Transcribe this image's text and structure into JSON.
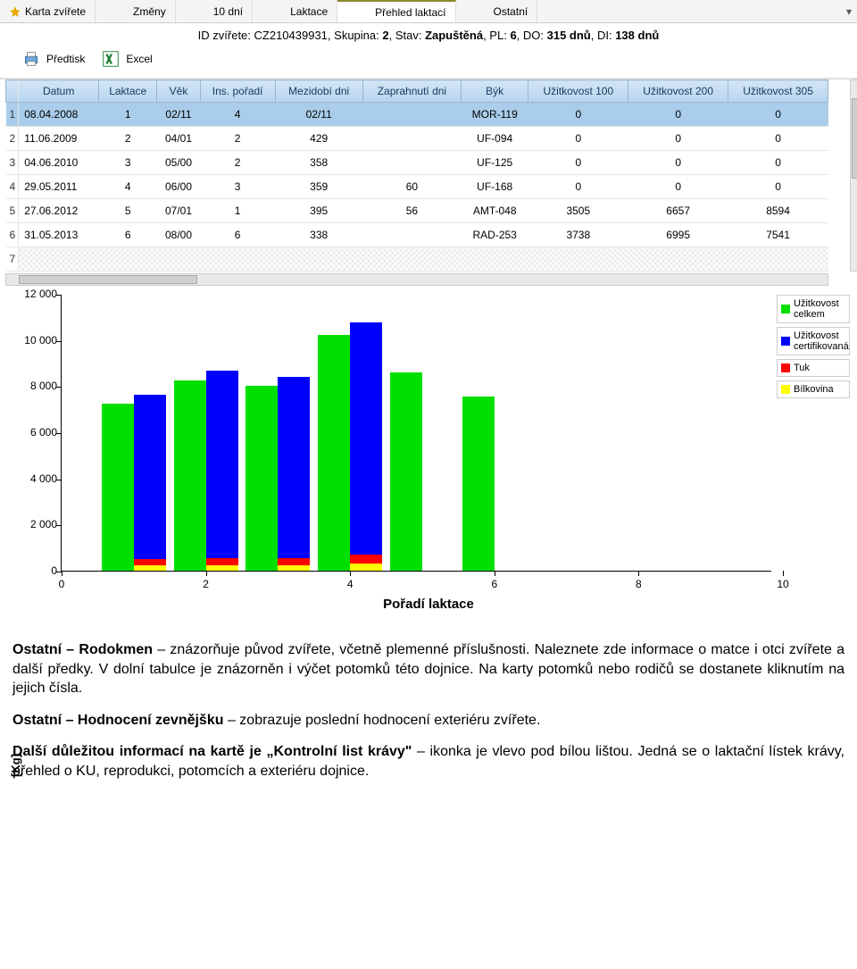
{
  "tabs": [
    {
      "label": "Karta zvířete",
      "active": false,
      "icon": "star"
    },
    {
      "label": "Změny",
      "active": false,
      "icon": "doc"
    },
    {
      "label": "10 dní",
      "active": false,
      "icon": "doc"
    },
    {
      "label": "Laktace",
      "active": false,
      "icon": "doc"
    },
    {
      "label": "Přehled laktací",
      "active": true,
      "icon": "doc"
    },
    {
      "label": "Ostatní",
      "active": false,
      "icon": "doc"
    }
  ],
  "info": {
    "prefix": "ID zvířete: ",
    "id": "CZ210439931",
    "group_lbl": ", Skupina: ",
    "group": "2",
    "state_lbl": ", Stav: ",
    "state": "Zapuštěná",
    "pl_lbl": ", PL: ",
    "pl": "6",
    "do_lbl": ", DO: ",
    "do": "315 dnů",
    "di_lbl": ", DI: ",
    "di": "138 dnů"
  },
  "toolbar": {
    "print": "Předtisk",
    "excel": "Excel"
  },
  "table": {
    "columns": [
      "Datum",
      "Laktace",
      "Věk",
      "Ins. pořadí",
      "Mezidobí dni",
      "Zaprahnutí dni",
      "Býk",
      "Užitkovost 100",
      "Užitkovost 200",
      "Užitkovost 305"
    ],
    "rows": [
      {
        "n": "1",
        "sel": true,
        "c": [
          "08.04.2008",
          "1",
          "02/11",
          "4",
          "02/11",
          "",
          "MOR-119",
          "0",
          "0",
          "0"
        ]
      },
      {
        "n": "2",
        "sel": false,
        "c": [
          "11.06.2009",
          "2",
          "04/01",
          "2",
          "429",
          "",
          "UF-094",
          "0",
          "0",
          "0"
        ]
      },
      {
        "n": "3",
        "sel": false,
        "c": [
          "04.06.2010",
          "3",
          "05/00",
          "2",
          "358",
          "",
          "UF-125",
          "0",
          "0",
          "0"
        ]
      },
      {
        "n": "4",
        "sel": false,
        "c": [
          "29.05.2011",
          "4",
          "06/00",
          "3",
          "359",
          "60",
          "UF-168",
          "0",
          "0",
          "0"
        ]
      },
      {
        "n": "5",
        "sel": false,
        "c": [
          "27.06.2012",
          "5",
          "07/01",
          "1",
          "395",
          "56",
          "AMT-048",
          "3505",
          "6657",
          "8594"
        ]
      },
      {
        "n": "6",
        "sel": false,
        "c": [
          "31.05.2013",
          "6",
          "08/00",
          "6",
          "338",
          "",
          "RAD-253",
          "3738",
          "6995",
          "7541"
        ]
      }
    ],
    "empty_idx": "7"
  },
  "chart": {
    "type": "bar",
    "y_title": "[Kg]",
    "x_title": "Pořadí laktace",
    "y_max": 12000,
    "y_step": 2000,
    "x_max": 10,
    "y_tick_labels": [
      "0",
      "2 000",
      "4 000",
      "6 000",
      "8 000",
      "10 000",
      "12 000"
    ],
    "colors": {
      "celkem": "#00e000",
      "cert": "#0000ff",
      "tuk": "#ff0000",
      "bilk": "#ffff00"
    },
    "bars": [
      {
        "x": 1,
        "celkem": 7250,
        "cert": 7110,
        "tuk": 280,
        "bilk": 230
      },
      {
        "x": 2,
        "celkem": 8250,
        "cert": 8100,
        "tuk": 310,
        "bilk": 250
      },
      {
        "x": 3,
        "celkem": 8020,
        "cert": 7870,
        "tuk": 300,
        "bilk": 245
      },
      {
        "x": 4,
        "celkem": 10230,
        "cert": 10058,
        "tuk": 390,
        "bilk": 310
      },
      {
        "x": 5,
        "celkem": 8594,
        "cert": 0,
        "tuk": 0,
        "bilk": 0
      },
      {
        "x": 6,
        "celkem": 7541,
        "cert": 0,
        "tuk": 0,
        "bilk": 0
      }
    ],
    "legend": [
      {
        "color": "#00e000",
        "label": "Užitkovost celkem"
      },
      {
        "color": "#0000ff",
        "label": "Užitkovost certifikovaná"
      },
      {
        "color": "#ff0000",
        "label": "Tuk"
      },
      {
        "color": "#ffff00",
        "label": "Bílkovina"
      }
    ]
  },
  "doc": {
    "p1a": "Ostatní – Rodokmen",
    "p1b": " – znázorňuje původ zvířete, včetně plemenné příslušnosti. Naleznete zde informace o matce i otci zvířete a další předky. V dolní tabulce je znázorněn i výčet potomků této dojnice. Na karty potomků nebo rodičů se dostanete kliknutím na jejich čísla.",
    "p2a": "Ostatní – Hodnocení zevnějšku",
    "p2b": " – zobrazuje poslední hodnocení exteriéru zvířete.",
    "p3a": "Další důležitou informací na kartě je „Kontrolní list krávy\"",
    "p3b": " – ikonka je vlevo pod bílou lištou. Jedná se o laktační lístek krávy, přehled o KU, reprodukci, potomcích a exteriéru dojnice."
  }
}
